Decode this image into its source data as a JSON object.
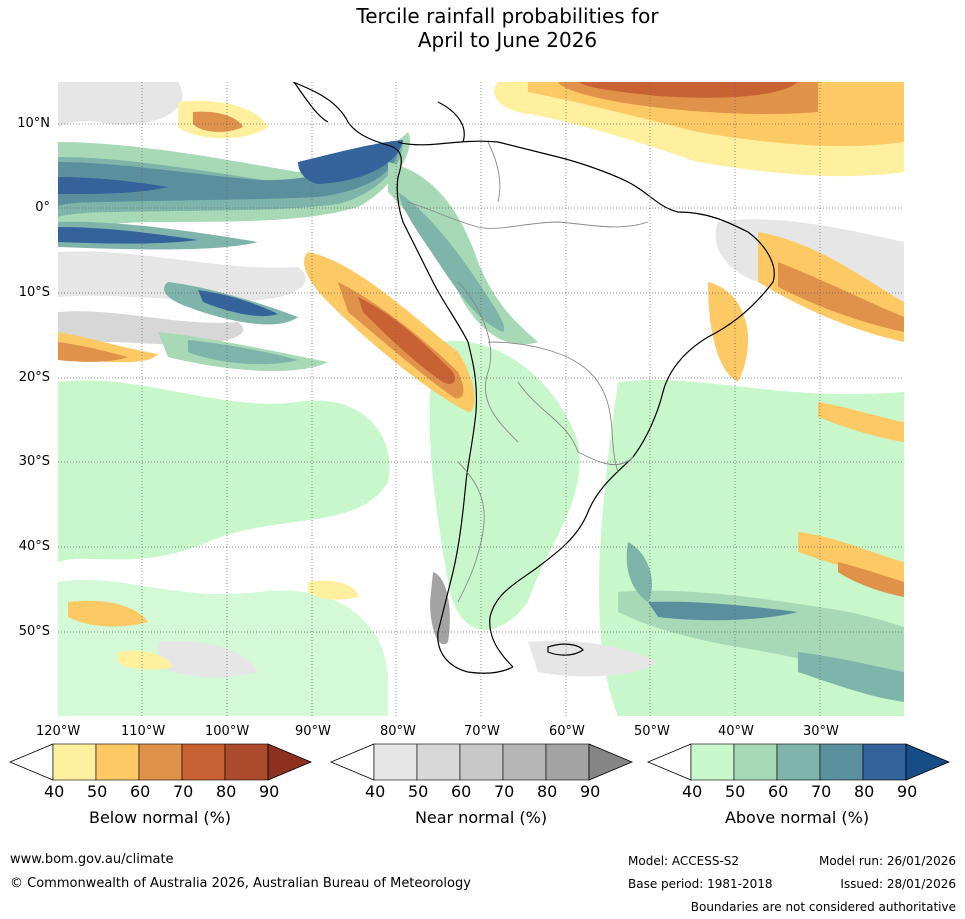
{
  "title": {
    "line1": "Tercile rainfall probabilities for",
    "line2": "April to June 2026"
  },
  "map": {
    "lat_labels": [
      "10°N",
      "0°",
      "10°S",
      "20°S",
      "30°S",
      "40°S",
      "50°S"
    ],
    "lon_labels": [
      "120°W",
      "110°W",
      "100°W",
      "90°W",
      "80°W",
      "70°W",
      "60°W",
      "50°W",
      "40°W",
      "30°W"
    ]
  },
  "colorbars": [
    {
      "label": "Below normal (%)",
      "ticks": [
        "40",
        "50",
        "60",
        "70",
        "80",
        "90"
      ],
      "colors": [
        "#fff0a0",
        "#fdc964",
        "#e0914a",
        "#c96233",
        "#ab4a2c",
        "#8e3020"
      ]
    },
    {
      "label": "Near normal (%)",
      "ticks": [
        "40",
        "50",
        "60",
        "70",
        "80",
        "90"
      ],
      "colors": [
        "#e6e6e6",
        "#d7d7d7",
        "#c8c8c8",
        "#b6b6b6",
        "#a3a3a3",
        "#858585"
      ]
    },
    {
      "label": "Above normal (%)",
      "ticks": [
        "40",
        "50",
        "60",
        "70",
        "80",
        "90"
      ],
      "colors": [
        "#c9f7cc",
        "#a7d9b7",
        "#7fb4aa",
        "#5a909e",
        "#34629a",
        "#164d86"
      ]
    }
  ],
  "footer": {
    "website": "www.bom.gov.au/climate",
    "copyright": "© Commonwealth of Australia 2026, Australian Bureau of Meteorology",
    "model": "Model: ACCESS-S2",
    "model_run": "Model run: 26/01/2026",
    "base_period": "Base period: 1981-2018",
    "issued": "Issued: 28/01/2026",
    "disclaimer": "Boundaries are not considered authoritative"
  }
}
